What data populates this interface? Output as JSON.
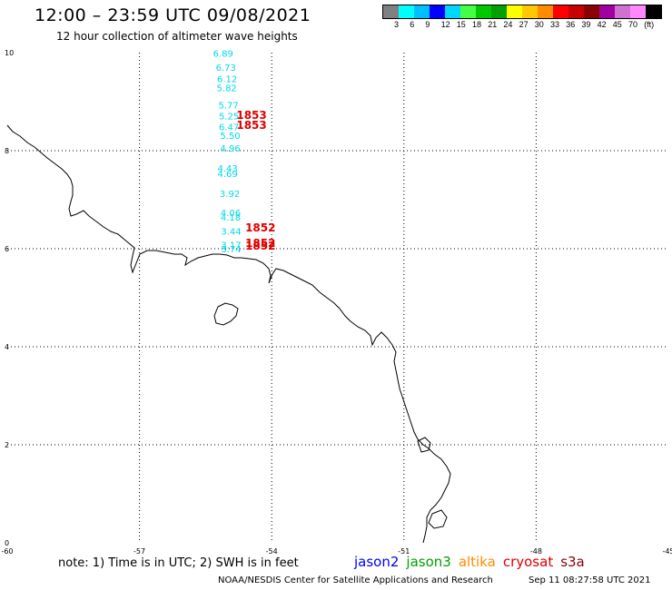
{
  "header": {
    "title": "12:00 – 23:59 UTC 09/08/2021",
    "subtitle": "12 hour collection of altimeter wave heights"
  },
  "legend": {
    "colors": [
      "#808080",
      "#00ffff",
      "#00bfff",
      "#0000ff",
      "#00d8ff",
      "#44ff44",
      "#00c800",
      "#00a000",
      "#ffff00",
      "#ffc800",
      "#ff8c00",
      "#ff0000",
      "#c80000",
      "#8b0000",
      "#a000a0",
      "#d070d0",
      "#ff88ff",
      "#000000"
    ],
    "labels": [
      "3",
      "6",
      "9",
      "12",
      "15",
      "18",
      "21",
      "24",
      "27",
      "30",
      "33",
      "36",
      "39",
      "42",
      "45",
      "70",
      "(ft)"
    ]
  },
  "axes": {
    "x_ticks": [
      "-60",
      "-57",
      "-54",
      "-51",
      "-48",
      "-45"
    ],
    "y_ticks": [
      "10",
      "8",
      "6",
      "4",
      "2",
      "0"
    ]
  },
  "wave_heights": [
    {
      "v": "6.89",
      "lon": -55.33,
      "lat": 9.92
    },
    {
      "v": "6.73",
      "lon": -55.27,
      "lat": 9.63
    },
    {
      "v": "6.12",
      "lon": -55.24,
      "lat": 9.4
    },
    {
      "v": "5.82",
      "lon": -55.25,
      "lat": 9.21
    },
    {
      "v": "5.77",
      "lon": -55.21,
      "lat": 8.86
    },
    {
      "v": "5.25",
      "lon": -55.2,
      "lat": 8.64
    },
    {
      "v": "6.47",
      "lon": -55.2,
      "lat": 8.42
    },
    {
      "v": "5.50",
      "lon": -55.17,
      "lat": 8.24
    },
    {
      "v": "4.96",
      "lon": -55.17,
      "lat": 7.98
    },
    {
      "v": "4.43",
      "lon": -55.23,
      "lat": 7.57
    },
    {
      "v": "4.69",
      "lon": -55.23,
      "lat": 7.46
    },
    {
      "v": "3.92",
      "lon": -55.18,
      "lat": 7.06
    },
    {
      "v": "4.06",
      "lon": -55.16,
      "lat": 6.67
    },
    {
      "v": "4.18",
      "lon": -55.16,
      "lat": 6.57
    },
    {
      "v": "3.44",
      "lon": -55.15,
      "lat": 6.29
    },
    {
      "v": "3.17",
      "lon": -55.15,
      "lat": 6.01
    },
    {
      "v": "3.74",
      "lon": -55.15,
      "lat": 5.93
    }
  ],
  "pass_labels": [
    {
      "v": "1853",
      "lon": -54.8,
      "lat": 8.65
    },
    {
      "v": "1853",
      "lon": -54.8,
      "lat": 8.44
    },
    {
      "v": "1852",
      "lon": -54.6,
      "lat": 6.35
    },
    {
      "v": "1852",
      "lon": -54.6,
      "lat": 6.04
    },
    {
      "v": "1852",
      "lon": -54.6,
      "lat": 5.98
    }
  ],
  "footer": {
    "note": "note: 1) Time is in UTC; 2) SWH is in feet",
    "satellites": [
      {
        "name": "jason2",
        "color": "#0000ff"
      },
      {
        "name": "jason3",
        "color": "#00a000"
      },
      {
        "name": "altika",
        "color": "#ff8c00"
      },
      {
        "name": "cryosat",
        "color": "#e00000"
      },
      {
        "name": "s3a",
        "color": "#8b0000"
      }
    ],
    "credit": "NOAA/NESDIS Center for Satellite Applications and Research",
    "timestamp": "Sep 11 08:27:58 UTC 2021"
  }
}
